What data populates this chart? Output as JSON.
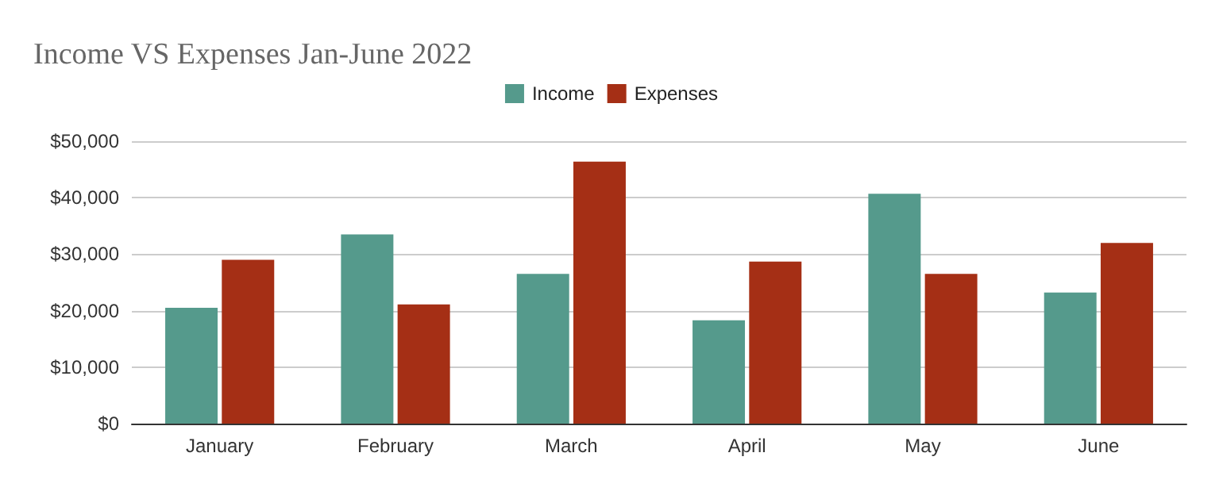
{
  "chart_data": {
    "type": "bar",
    "title": "Income VS Expenses Jan-June 2022",
    "categories": [
      "January",
      "February",
      "March",
      "April",
      "May",
      "June"
    ],
    "series": [
      {
        "name": "Income",
        "color": "#559a8c",
        "values": [
          20500,
          33500,
          26500,
          18300,
          40700,
          23200
        ]
      },
      {
        "name": "Expenses",
        "color": "#a52f15",
        "values": [
          29000,
          21100,
          46400,
          28700,
          26500,
          32000
        ]
      }
    ],
    "ylim": [
      0,
      50000
    ],
    "yticks": [
      {
        "value": 0,
        "label": "$0"
      },
      {
        "value": 10000,
        "label": "$10,000"
      },
      {
        "value": 20000,
        "label": "$20,000"
      },
      {
        "value": 30000,
        "label": "$30,000"
      },
      {
        "value": 40000,
        "label": "$40,000"
      },
      {
        "value": 50000,
        "label": "$50,000"
      }
    ],
    "grid": "y",
    "legend": "top"
  }
}
